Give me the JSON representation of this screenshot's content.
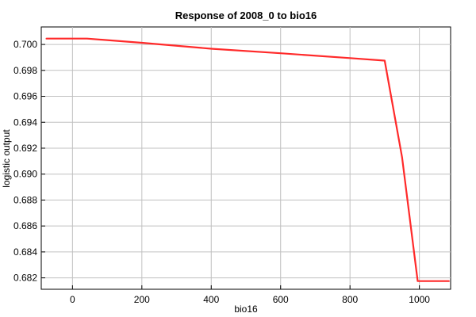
{
  "chart_data": {
    "type": "line",
    "title": "Response of 2008_0 to bio16",
    "xlabel": "bio16",
    "ylabel": "logistic output",
    "xlim": [
      -90,
      1090
    ],
    "ylim": [
      0.68112,
      0.70135
    ],
    "grid": true,
    "x_ticks": [
      0,
      200,
      400,
      600,
      800,
      1000
    ],
    "y_ticks": [
      0.682,
      0.684,
      0.686,
      0.688,
      0.69,
      0.692,
      0.694,
      0.696,
      0.698,
      0.7
    ],
    "x_tick_labels": [
      "0",
      "200",
      "400",
      "600",
      "800",
      "1000"
    ],
    "y_tick_labels": [
      "0.682",
      "0.684",
      "0.686",
      "0.688",
      "0.690",
      "0.692",
      "0.694",
      "0.696",
      "0.698",
      "0.700"
    ],
    "series": [
      {
        "color": "#ff2a2a",
        "x": [
          -75,
          42,
          200,
          400,
          600,
          800,
          900,
          950,
          995,
          1085
        ],
        "y": [
          0.70045,
          0.70045,
          0.70013,
          0.69967,
          0.69932,
          0.69895,
          0.69875,
          0.6913,
          0.68175,
          0.68175
        ]
      }
    ]
  }
}
